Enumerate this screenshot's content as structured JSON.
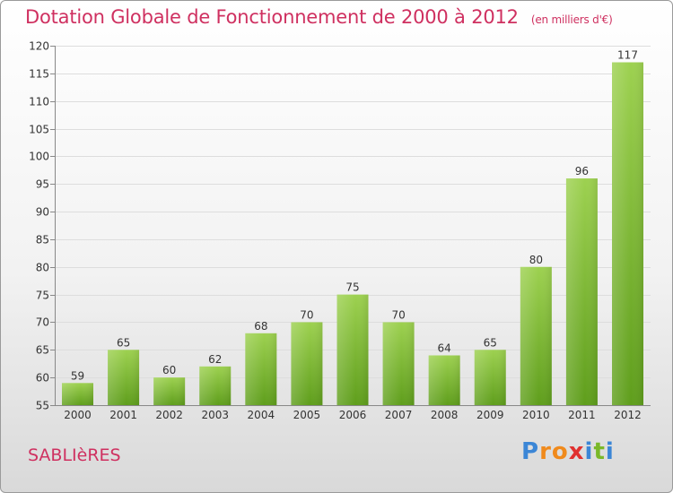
{
  "header": {
    "title": "Dotation Globale de Fonctionnement de 2000 à 2012",
    "unit": "(en milliers d'€)"
  },
  "footer": {
    "commune": "SABLIèRES",
    "logo": "Proxiti"
  },
  "colors": {
    "title": "#cf3060",
    "bar_top": "#9dd150",
    "bar_bottom": "#5f9e1c",
    "logo": [
      "#3b86d6",
      "#f08a1c",
      "#f08a1c",
      "#e0302f",
      "#3b86d6",
      "#7ab829",
      "#3b86d6"
    ]
  },
  "chart_data": {
    "type": "bar",
    "categories": [
      "2000",
      "2001",
      "2002",
      "2003",
      "2004",
      "2005",
      "2006",
      "2007",
      "2008",
      "2009",
      "2010",
      "2011",
      "2012"
    ],
    "values": [
      59,
      65,
      60,
      62,
      68,
      70,
      75,
      70,
      64,
      65,
      80,
      96,
      117
    ],
    "title": "Dotation Globale de Fonctionnement de 2000 à 2012",
    "ylim": [
      55,
      120
    ],
    "yticks": [
      55,
      60,
      65,
      70,
      75,
      80,
      85,
      90,
      95,
      100,
      105,
      110,
      115,
      120
    ],
    "grid": true
  }
}
